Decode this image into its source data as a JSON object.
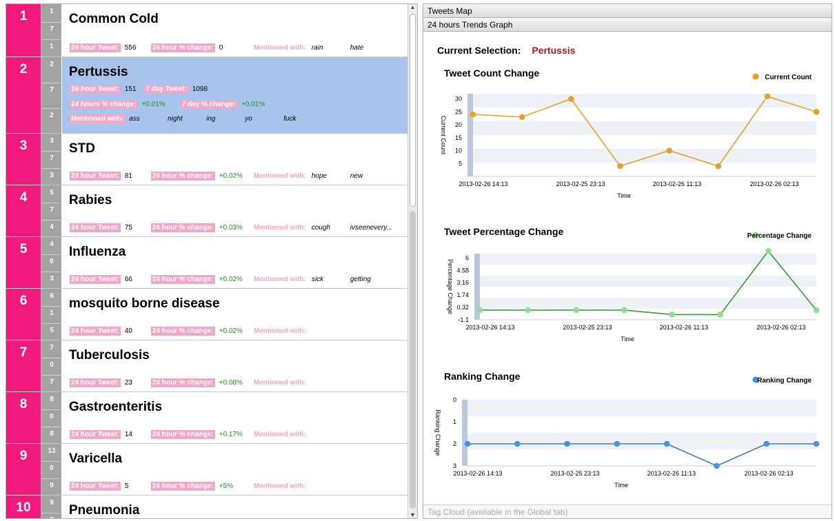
{
  "diseases": [
    {
      "rank": "1",
      "mini": [
        "1",
        "7",
        "1"
      ],
      "name": "Common Cold",
      "stats": [
        {
          "l": "24 hour Tweet:",
          "v": "556"
        },
        {
          "l": "24 hour % change:",
          "v": "0"
        }
      ],
      "mentioned_label": "Mentioned with:",
      "mentioned": [
        "rain",
        "hate"
      ]
    },
    {
      "rank": "2",
      "mini": [
        "2",
        "7",
        "2"
      ],
      "name": "Pertussis"
    },
    {
      "rank": "3",
      "mini": [
        "3",
        "7",
        "3"
      ],
      "name": "STD",
      "stats": [
        {
          "l": "24 hour Tweet:",
          "v": "81"
        },
        {
          "l": "24 hour % change:",
          "v": "+0.02%"
        }
      ],
      "mentioned_label": "Mentioned with:",
      "mentioned": [
        "hope",
        "new"
      ]
    },
    {
      "rank": "4",
      "mini": [
        "5",
        "7",
        "4"
      ],
      "name": "Rabies",
      "stats": [
        {
          "l": "24 hour Tweet:",
          "v": "75"
        },
        {
          "l": "24 hour % change:",
          "v": "+0.03%"
        }
      ],
      "mentioned_label": "Mentioned with:",
      "mentioned": [
        "cough",
        "ivseenevery..."
      ]
    },
    {
      "rank": "5",
      "mini": [
        "4",
        "6",
        "3"
      ],
      "name": "Influenza",
      "stats": [
        {
          "l": "24 hour Tweet:",
          "v": "66"
        },
        {
          "l": "24 hour % change:",
          "v": "+0.02%"
        }
      ],
      "mentioned_label": "Mentioned with:",
      "mentioned": [
        "sick",
        "getting"
      ]
    },
    {
      "rank": "6",
      "mini": [
        "6",
        "1",
        "5"
      ],
      "name": "mosquito borne disease",
      "stats": [
        {
          "l": "24 hour Tweet:",
          "v": "40"
        },
        {
          "l": "24 hour % change:",
          "v": "+0.02%"
        }
      ],
      "mentioned_label": "Mentioned with:",
      "mentioned": []
    },
    {
      "rank": "7",
      "mini": [
        "7",
        "0",
        "7"
      ],
      "name": "Tuberculosis",
      "stats": [
        {
          "l": "24 hour Tweet:",
          "v": "23"
        },
        {
          "l": "24 hour % change:",
          "v": "+0.08%"
        }
      ],
      "mentioned_label": "Mentioned with:",
      "mentioned": []
    },
    {
      "rank": "8",
      "mini": [
        "8",
        "0",
        "8"
      ],
      "name": "Gastroenteritis",
      "stats": [
        {
          "l": "24 hour Tweet:",
          "v": "14"
        },
        {
          "l": "24 hour % change:",
          "v": "+0.17%"
        }
      ],
      "mentioned_label": "Mentioned with:",
      "mentioned": []
    },
    {
      "rank": "9",
      "mini": [
        "13",
        "0",
        "9"
      ],
      "name": "Varicella",
      "stats": [
        {
          "l": "24 hour Tweet:",
          "v": "5"
        },
        {
          "l": "24 hour % change:",
          "v": "+5%"
        }
      ],
      "mentioned_label": "Mentioned with:",
      "mentioned": []
    },
    {
      "rank": "10",
      "mini": [
        "9",
        "8"
      ],
      "name": "Pneumonia"
    }
  ],
  "selected": {
    "tweet_label": "24 hour Tweet:",
    "tweet": "151",
    "week_label": "7 day Tweet:",
    "week": "1098",
    "pct_label": "24 hours % change:",
    "pct": "+0.01%",
    "wpct_label": "7 day % change:",
    "wpct": "+0.01%",
    "mentioned_label": "Mentioned with:",
    "mentioned": [
      "ass",
      "night",
      "ing",
      "yo",
      "fuck"
    ]
  },
  "right": {
    "tab_map": "Tweets Map",
    "tab_trends": "24 hours Trends Graph",
    "current_label": "Current Selection:",
    "current_value": "Pertussis",
    "footer": "Tag Cloud (available in the Global tab)"
  },
  "colors": {
    "pink": "#f0197c",
    "orange": "#e8a02a",
    "green": "#3a9a3a",
    "green_pt": "#8de08d",
    "blue": "#3a7ad0",
    "blue_pt": "#4a90e2"
  },
  "chart_data": [
    {
      "type": "line",
      "title": "Tweet Count Change",
      "legend": "Current Count",
      "legend_position": "top-right",
      "xlabel": "Time",
      "ylabel": "Current Count",
      "yticks": [
        "5",
        "10",
        "15",
        "20",
        "25",
        "30"
      ],
      "ylim": [
        0,
        32
      ],
      "xtick_labels": [
        "2013-02-26 14:13",
        "2013-02-25 23:13",
        "2013-02-26 11:13",
        "2013-02-26 02:13"
      ],
      "values": [
        24,
        23,
        30,
        4,
        10,
        4,
        31,
        25
      ]
    },
    {
      "type": "line",
      "title": "Tweet Percentage Change",
      "legend": "Percentage Change",
      "legend_position": "top-right",
      "xlabel": "Time",
      "ylabel": "Percentage Change",
      "yticks": [
        "-1.1",
        "0.32",
        "1.74",
        "3.16",
        "4.58",
        "6"
      ],
      "ylim": [
        -1.1,
        6.5
      ],
      "xtick_labels": [
        "2013-02-26 14:13",
        "2013-02-25 23:13",
        "2013-02-26 11:13",
        "2013-02-26 02:13"
      ],
      "values": [
        0.01,
        0.01,
        0.01,
        0.01,
        -0.5,
        -0.5,
        6.8,
        0.0
      ]
    },
    {
      "type": "line",
      "title": "Ranking Change",
      "legend": "Ranking Change",
      "legend_position": "top-right",
      "xlabel": "Time",
      "ylabel": "Ranking Change",
      "yticks": [
        "0",
        "1",
        "2",
        "3"
      ],
      "ylim": [
        0,
        3
      ],
      "inverted": true,
      "xtick_labels": [
        "2013-02-26 14:13",
        "2013-02-25 23:13",
        "2013-02-26 11:13",
        "2013-02-26 02:13"
      ],
      "values": [
        2,
        2,
        2,
        2,
        2,
        3,
        2,
        2
      ]
    }
  ]
}
